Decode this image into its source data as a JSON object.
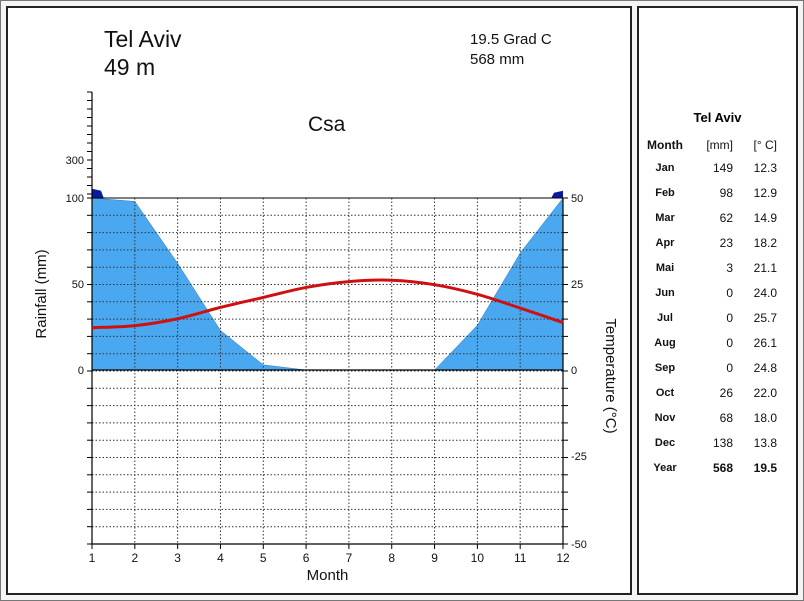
{
  "header": {
    "station": "Tel Aviv",
    "elevation": "49 m",
    "mean_temp": "19.5 Grad C",
    "annual_rain": "568 mm",
    "climate_class": "Csa"
  },
  "colors": {
    "rain_fill": "#4aa8f0",
    "rain_excess": "#0a1aa0",
    "temp_line": "#d01010",
    "grid": "#333333"
  },
  "chart_data": {
    "type": "climate-diagram",
    "x": [
      1,
      2,
      3,
      4,
      5,
      6,
      7,
      8,
      9,
      10,
      11,
      12
    ],
    "xlabel": "Month",
    "ylabel": "Rainfall (mm)",
    "y2label": "Temperature (°C)",
    "rain_ticks": [
      "300",
      "100",
      "50",
      "0"
    ],
    "temp_ticks": [
      "50",
      "25",
      "0",
      "-25",
      "-50"
    ],
    "x_ticks": [
      "1",
      "2",
      "3",
      "4",
      "5",
      "6",
      "7",
      "8",
      "9",
      "10",
      "11",
      "12"
    ],
    "series": [
      {
        "name": "Rainfall",
        "unit": "mm",
        "values": [
          149,
          98,
          62,
          23,
          3,
          0,
          0,
          0,
          0,
          26,
          68,
          138
        ]
      },
      {
        "name": "Temperature",
        "unit": "°C",
        "values": [
          12.3,
          12.9,
          14.9,
          18.2,
          21.1,
          24.0,
          25.7,
          26.1,
          24.8,
          22.0,
          18.0,
          13.8
        ]
      }
    ]
  },
  "table": {
    "title": "Tel Aviv",
    "headers": [
      "Month",
      "[mm]",
      "[° C]"
    ],
    "rows": [
      [
        "Jan",
        "149",
        "12.3"
      ],
      [
        "Feb",
        "98",
        "12.9"
      ],
      [
        "Mar",
        "62",
        "14.9"
      ],
      [
        "Apr",
        "23",
        "18.2"
      ],
      [
        "Mai",
        "3",
        "21.1"
      ],
      [
        "Jun",
        "0",
        "24.0"
      ],
      [
        "Jul",
        "0",
        "25.7"
      ],
      [
        "Aug",
        "0",
        "26.1"
      ],
      [
        "Sep",
        "0",
        "24.8"
      ],
      [
        "Oct",
        "26",
        "22.0"
      ],
      [
        "Nov",
        "68",
        "18.0"
      ],
      [
        "Dec",
        "138",
        "13.8"
      ]
    ],
    "total": [
      "Year",
      "568",
      "19.5"
    ]
  }
}
